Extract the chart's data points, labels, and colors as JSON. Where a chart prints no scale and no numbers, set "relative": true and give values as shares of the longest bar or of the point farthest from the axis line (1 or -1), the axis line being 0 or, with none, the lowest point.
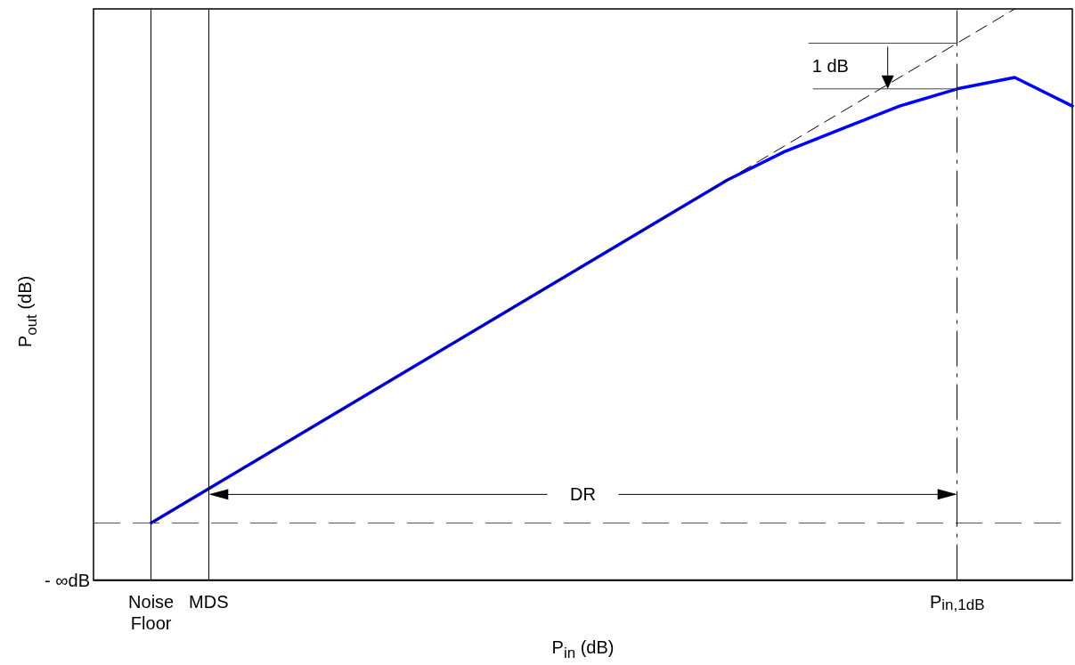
{
  "chart_data": {
    "type": "line",
    "relative": true,
    "xlabel": "P$_{in}$ (dB)",
    "ylabel": "P$_{out}$ (dB)",
    "categories": [
      null,
      "Noise Floor",
      "MDS",
      null,
      null,
      null,
      null,
      null,
      null,
      null,
      null,
      null,
      null,
      null,
      null,
      "P$_{in,1dB}$",
      null,
      null
    ],
    "series": [
      {
        "color": "#0000ff",
        "line_style": "solid",
        "values": [
          null,
          0.1,
          0.16,
          0.22,
          0.28,
          0.34,
          0.4,
          0.46,
          0.52,
          0.58,
          0.64,
          0.7,
          0.75,
          0.79,
          0.83,
          0.86,
          0.88,
          0.83
        ]
      },
      {
        "color": "#000000",
        "line_style": "dashed",
        "values": [
          null,
          0.1,
          0.16,
          0.22,
          0.28,
          0.34,
          0.4,
          0.46,
          0.52,
          0.58,
          0.64,
          0.7,
          0.76,
          0.82,
          0.88,
          0.94,
          1.0,
          null
        ]
      }
    ],
    "marker": "none",
    "grid": false,
    "ref_lines": [
      {
        "axis": "y",
        "value": 0.1,
        "color": "#555555",
        "line_style": "dashed"
      },
      {
        "axis": "x",
        "value": "Noise Floor",
        "color": "#000000",
        "line_style": "solid"
      },
      {
        "axis": "x",
        "value": "MDS",
        "color": "#000000",
        "line_style": "solid"
      },
      {
        "axis": "x",
        "value": "P$_{in,1dB}$",
        "color": "#000000",
        "line_style": "dashed"
      }
    ],
    "annotations": [
      "1 dB",
      "DR",
      "- ∞dB"
    ]
  }
}
